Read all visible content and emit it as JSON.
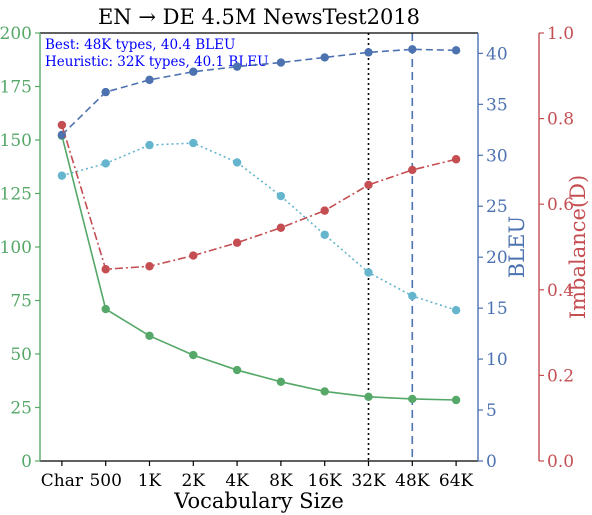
{
  "chart_data": {
    "type": "line",
    "title": "EN → DE 4.5M NewsTest2018",
    "xlabel": "Vocabulary Size",
    "categories": [
      "Char",
      "500",
      "1K",
      "2K",
      "4K",
      "8K",
      "16K",
      "32K",
      "48K",
      "64K"
    ],
    "axes": {
      "left": {
        "label": "",
        "ylim": [
          0,
          200
        ],
        "ticks": [
          0,
          25,
          50,
          75,
          100,
          125,
          150,
          175,
          200
        ],
        "color": "#55a868"
      },
      "bleu": {
        "label": "BLEU",
        "ylim": [
          0,
          42
        ],
        "ticks": [
          0,
          5,
          10,
          15,
          20,
          25,
          30,
          35,
          40
        ],
        "color": "#4c72b0"
      },
      "imbalance": {
        "label": "Imbalance(D)",
        "ylim": [
          0,
          1.0
        ],
        "ticks": [
          "0.0",
          "0.2",
          "0.4",
          "0.6",
          "0.8",
          "1.0"
        ],
        "color": "#c44e52"
      }
    },
    "series": [
      {
        "name": "",
        "axis": "left",
        "style": "solid",
        "color": "#55a868",
        "values": [
          152,
          71,
          58.5,
          49.5,
          42.5,
          37,
          32.5,
          30,
          29,
          28.5
        ]
      },
      {
        "name": "",
        "axis": "bleu",
        "style": "dashed",
        "color": "#4c72b0",
        "values": [
          32,
          36.2,
          37.4,
          38.2,
          38.7,
          39.1,
          39.6,
          40.1,
          40.4,
          40.3
        ]
      },
      {
        "name": "",
        "axis": "bleu",
        "style": "dotted",
        "color": "#64b5cd",
        "values": [
          28,
          29.2,
          31,
          31.2,
          29.3,
          26,
          22.2,
          18.5,
          16.2,
          14.8
        ]
      },
      {
        "name": "",
        "axis": "imbalance",
        "style": "dashdot",
        "color": "#c44e52",
        "values": [
          0.785,
          0.448,
          0.455,
          0.48,
          0.51,
          0.545,
          0.585,
          0.645,
          0.68,
          0.705
        ]
      }
    ],
    "vlines": [
      {
        "category": "32K",
        "style": "dotted",
        "color": "#000000"
      },
      {
        "category": "48K",
        "style": "dashed",
        "color": "#4c72b0"
      }
    ],
    "annotations": [
      {
        "text": "Best: 48K types, 40.4 BLEU",
        "color": "#0000ff"
      },
      {
        "text": "Heuristic: 32K types, 40.1 BLEU",
        "color": "#0000ff"
      }
    ],
    "grid": false
  }
}
